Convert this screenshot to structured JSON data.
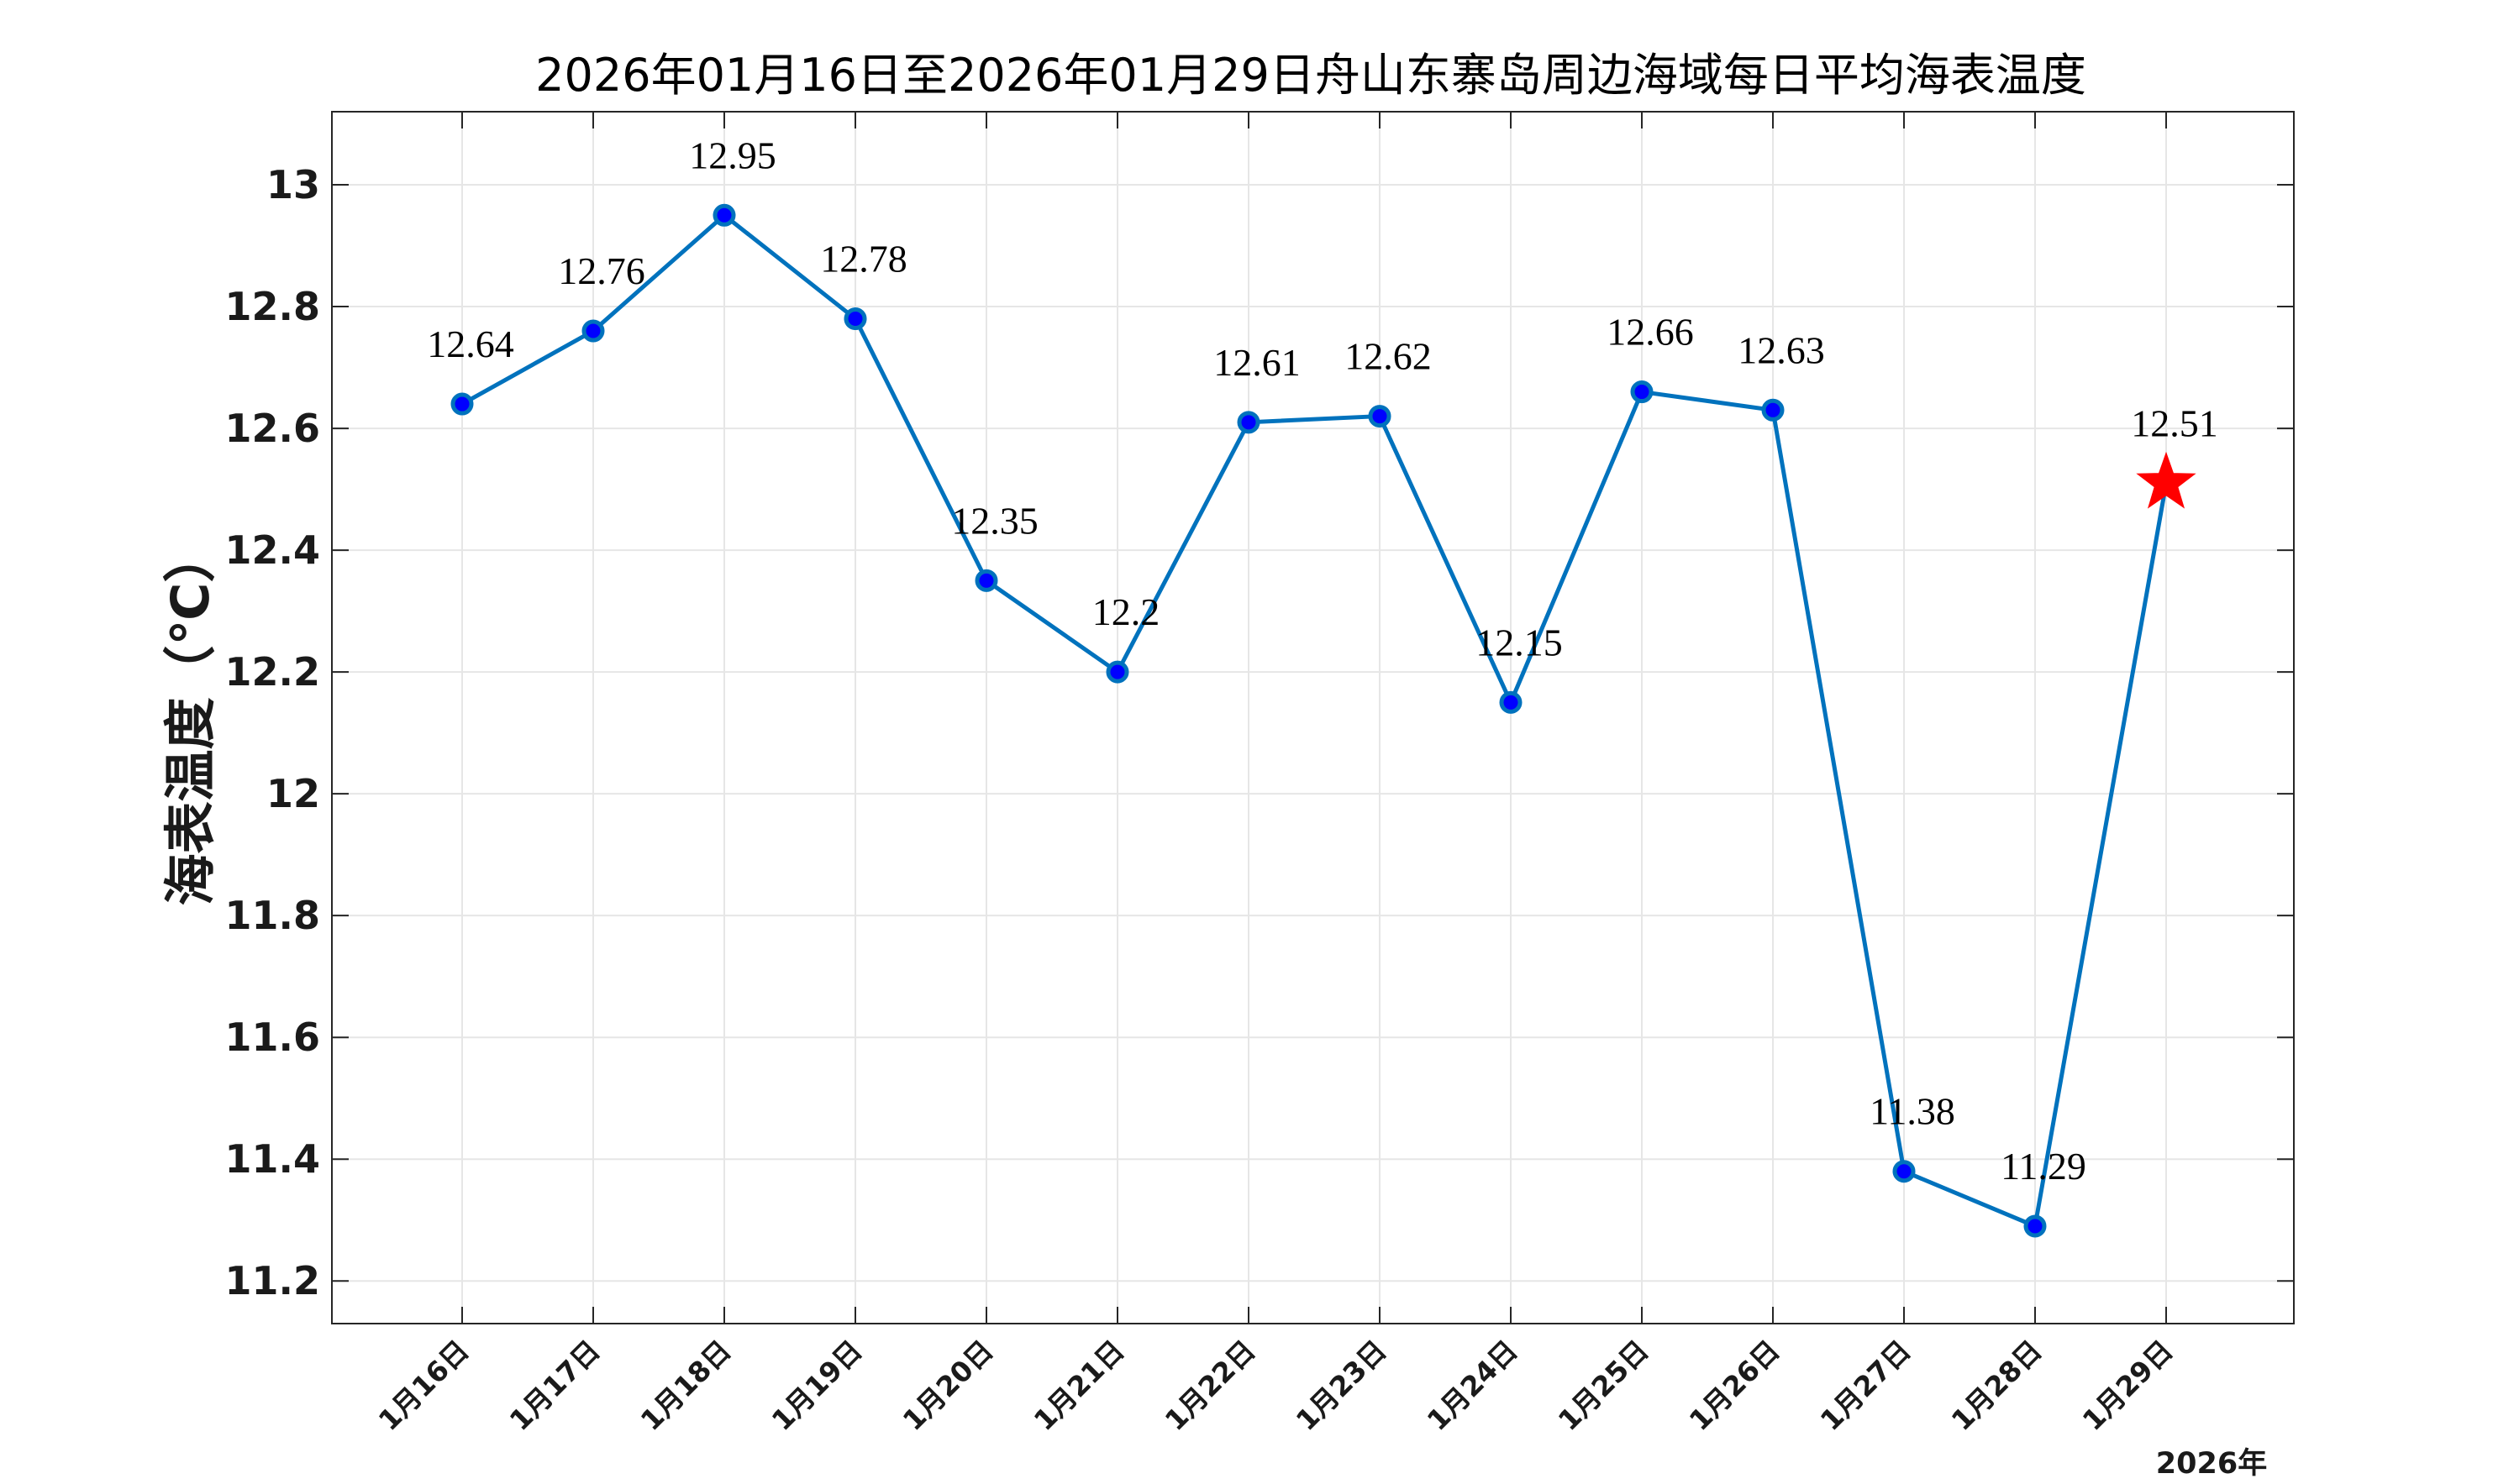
{
  "chart_data": {
    "type": "line",
    "title": "2026年01月16日至2026年01月29日舟山东寨岛周边海域每日平均海表温度",
    "xlabel": "",
    "ylabel": "海表温度（℃）",
    "year_label": "2026年",
    "categories": [
      "1月16日",
      "1月17日",
      "1月18日",
      "1月19日",
      "1月20日",
      "1月21日",
      "1月22日",
      "1月23日",
      "1月24日",
      "1月25日",
      "1月26日",
      "1月27日",
      "1月28日",
      "1月29日"
    ],
    "values": [
      12.64,
      12.76,
      12.95,
      12.78,
      12.35,
      12.2,
      12.61,
      12.62,
      12.15,
      12.66,
      12.63,
      11.38,
      11.29,
      12.51
    ],
    "value_labels": [
      "12.64",
      "12.76",
      "12.95",
      "12.78",
      "12.35",
      "12.2",
      "12.61",
      "12.62",
      "12.15",
      "12.66",
      "12.63",
      "11.38",
      "11.29",
      "12.51"
    ],
    "ylim": [
      11.13,
      13.12
    ],
    "yticks": [
      11.2,
      11.4,
      11.6,
      11.8,
      12,
      12.2,
      12.4,
      12.6,
      12.8,
      13
    ],
    "ytick_labels": [
      "11.2",
      "11.4",
      "11.6",
      "11.8",
      "12",
      "12.2",
      "12.4",
      "12.6",
      "12.8",
      "13"
    ],
    "grid": true,
    "highlight_last_point": "red-star",
    "colors": {
      "line": "#0072BD",
      "marker_fill": "#0000FF",
      "marker_edge": "#0072BD",
      "star": "#FF0000",
      "grid": "#E6E6E6",
      "axes": "#262626"
    }
  }
}
